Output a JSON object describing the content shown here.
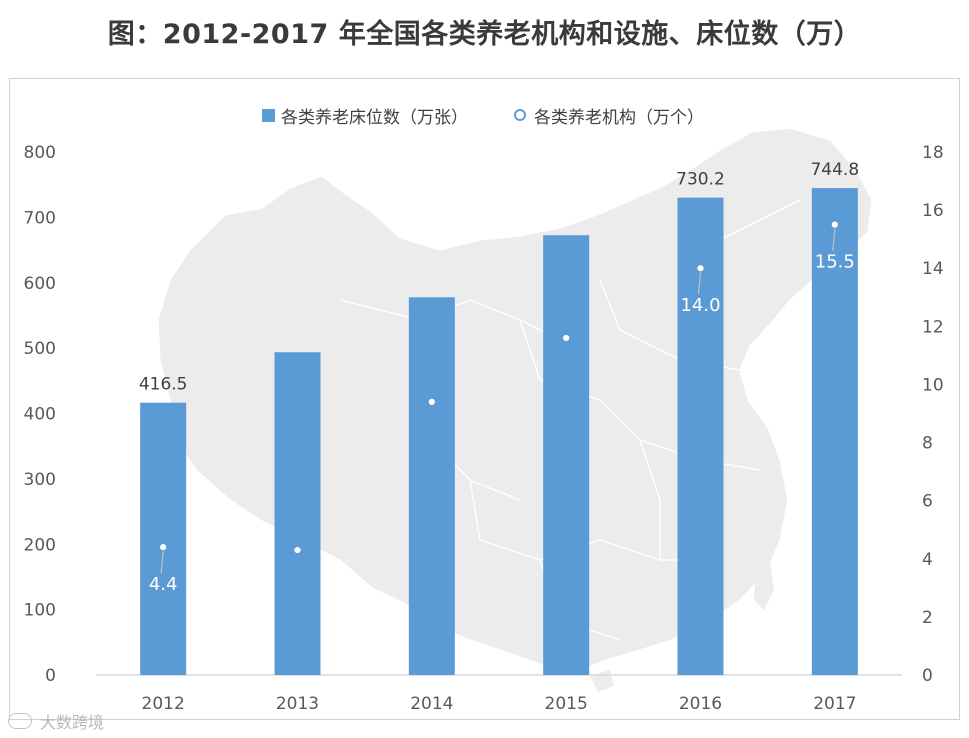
{
  "title": "图：2012-2017 年全国各类养老机构和设施、床位数（万）",
  "legend": {
    "beds_label": "各类养老床位数（万张）",
    "inst_label": "各类养老机构（万个）"
  },
  "watermark": "大数跨境",
  "colors": {
    "bar": "#5b9bd5",
    "dot": "#ffffff",
    "map": "#ececec",
    "text": "#404040"
  },
  "chart_data": {
    "type": "bar",
    "categories": [
      "2012",
      "2013",
      "2014",
      "2015",
      "2016",
      "2017"
    ],
    "series": [
      {
        "name": "各类养老床位数（万张）",
        "type": "bar",
        "axis": "left",
        "values": [
          416.5,
          493.7,
          577.8,
          672.7,
          730.2,
          744.8
        ],
        "labels": [
          "416.5",
          "",
          "",
          "",
          "730.2",
          "744.8"
        ]
      },
      {
        "name": "各类养老机构（万个）",
        "type": "scatter",
        "axis": "right",
        "values": [
          4.4,
          4.3,
          9.4,
          11.6,
          14.0,
          15.5
        ],
        "labels": [
          "4.4",
          "",
          "",
          "",
          "14.0",
          "15.5"
        ]
      }
    ],
    "y_left": {
      "min": 0,
      "max": 800,
      "ticks": [
        "0",
        "100",
        "200",
        "300",
        "400",
        "500",
        "600",
        "700",
        "800"
      ]
    },
    "y_right": {
      "min": 0,
      "max": 18,
      "ticks": [
        "0",
        "2",
        "4",
        "6",
        "8",
        "10",
        "12",
        "14",
        "16",
        "18"
      ]
    },
    "grid": false,
    "legend_position": "top"
  }
}
